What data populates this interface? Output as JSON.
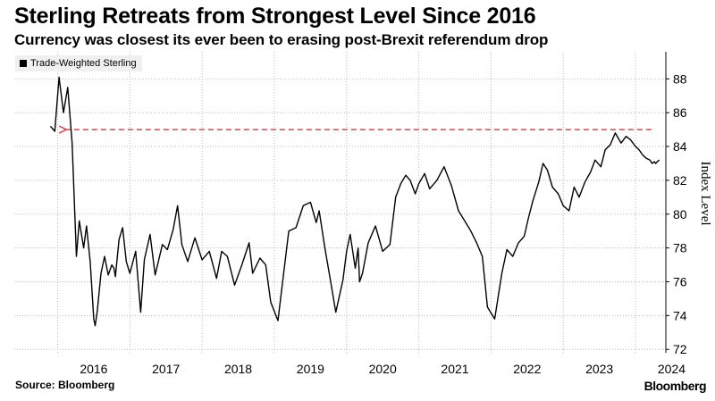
{
  "title": "Sterling Retreats from Strongest Level Since 2016",
  "subtitle": "Currency was closest its ever been to erasing post-Brexit referendum drop",
  "source": "Source: Bloomberg",
  "brand": "Bloomberg",
  "colors": {
    "line": "#000000",
    "reference": "#e0404a",
    "grid": "#bbbbbb",
    "legend_bg": "#f0f0f0"
  },
  "chart_data": {
    "type": "line",
    "series": [
      {
        "name": "Trade-Weighted Sterling",
        "x": [
          2015.9,
          2015.96,
          2016.02,
          2016.08,
          2016.14,
          2016.2,
          2016.26,
          2016.3,
          2016.36,
          2016.4,
          2016.45,
          2016.5,
          2016.52,
          2016.55,
          2016.6,
          2016.65,
          2016.7,
          2016.75,
          2016.78,
          2016.8,
          2016.85,
          2016.9,
          2016.95,
          2017.0,
          2017.08,
          2017.15,
          2017.2,
          2017.28,
          2017.35,
          2017.45,
          2017.52,
          2017.6,
          2017.66,
          2017.72,
          2017.8,
          2017.9,
          2018.0,
          2018.1,
          2018.2,
          2018.27,
          2018.35,
          2018.45,
          2018.55,
          2018.65,
          2018.7,
          2018.8,
          2018.88,
          2018.95,
          2019.05,
          2019.12,
          2019.2,
          2019.3,
          2019.4,
          2019.5,
          2019.58,
          2019.62,
          2019.7,
          2019.78,
          2019.85,
          2019.95,
          2020.0,
          2020.05,
          2020.12,
          2020.16,
          2020.18,
          2020.22,
          2020.3,
          2020.4,
          2020.5,
          2020.6,
          2020.68,
          2020.75,
          2020.82,
          2020.88,
          2020.95,
          2021.0,
          2021.08,
          2021.15,
          2021.25,
          2021.35,
          2021.45,
          2021.55,
          2021.65,
          2021.72,
          2021.8,
          2021.88,
          2021.95,
          2022.05,
          2022.15,
          2022.22,
          2022.3,
          2022.38,
          2022.46,
          2022.52,
          2022.58,
          2022.66,
          2022.72,
          2022.78,
          2022.85,
          2022.93,
          2023.0,
          2023.08,
          2023.15,
          2023.22,
          2023.3,
          2023.38,
          2023.44,
          2023.52,
          2023.58,
          2023.65,
          2023.72,
          2023.8,
          2023.87,
          2023.93,
          2024.0,
          2024.05,
          2024.1,
          2024.15,
          2024.2,
          2024.23,
          2024.26,
          2024.28,
          2024.3,
          2024.33
        ],
        "values": [
          85.2,
          84.9,
          88.1,
          86.0,
          87.5,
          84.2,
          77.5,
          79.6,
          78.0,
          79.3,
          77.2,
          73.8,
          73.4,
          74.3,
          76.5,
          77.5,
          76.4,
          77.0,
          76.8,
          76.3,
          78.5,
          79.2,
          77.2,
          76.5,
          77.8,
          74.2,
          77.3,
          78.8,
          76.4,
          78.2,
          77.9,
          79.1,
          80.5,
          78.2,
          77.2,
          78.6,
          77.3,
          77.8,
          76.2,
          77.8,
          77.5,
          75.8,
          77.0,
          78.3,
          76.5,
          77.4,
          77.0,
          74.8,
          73.7,
          76.2,
          79.0,
          79.2,
          80.5,
          80.7,
          79.5,
          80.2,
          78.0,
          76.0,
          74.2,
          76.1,
          77.8,
          78.8,
          76.8,
          78.0,
          76.0,
          76.5,
          78.3,
          79.3,
          77.8,
          78.2,
          81.0,
          81.8,
          82.3,
          82.0,
          81.2,
          81.8,
          82.4,
          81.5,
          82.0,
          82.8,
          81.7,
          80.2,
          79.5,
          79.0,
          78.3,
          77.5,
          74.5,
          73.8,
          76.5,
          77.9,
          77.5,
          78.3,
          78.7,
          79.8,
          80.8,
          81.9,
          83.0,
          82.6,
          81.6,
          81.2,
          80.5,
          80.2,
          81.6,
          81.0,
          81.9,
          82.5,
          83.2,
          82.8,
          83.8,
          84.1,
          84.8,
          84.2,
          84.6,
          84.4,
          84.0,
          83.8,
          83.5,
          83.3,
          83.2,
          83.0,
          83.1,
          83.0,
          83.1,
          83.2
        ]
      }
    ],
    "reference_line": {
      "value": 85.0,
      "label": ""
    },
    "xlim": [
      2015.4,
      2024.42
    ],
    "ylim": [
      71.8,
      89.6
    ],
    "x_tick_labels": [
      "2016",
      "2017",
      "2018",
      "2019",
      "2020",
      "2021",
      "2022",
      "2023",
      "2024"
    ],
    "y_tick_labels": [
      "72",
      "74",
      "76",
      "78",
      "80",
      "82",
      "84",
      "86",
      "88"
    ],
    "ylabel": "Index Level",
    "grid": true,
    "legend_position": "top-left"
  }
}
